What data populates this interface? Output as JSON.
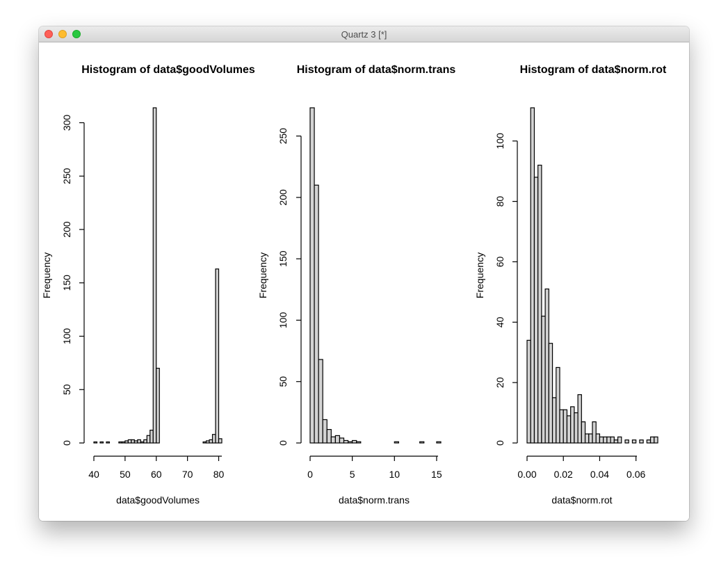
{
  "window": {
    "title": "Quartz 3 [*]"
  },
  "colors": {
    "bar_fill": "#d3d3d3",
    "bar_stroke": "#000000"
  },
  "chart_data": [
    {
      "type": "bar",
      "title": "Histogram of data$goodVolumes",
      "xlabel": "data$goodVolumes",
      "ylabel": "Frequency",
      "xlim": [
        40,
        81
      ],
      "ylim": [
        0,
        314
      ],
      "xticks": [
        40,
        50,
        60,
        70,
        80
      ],
      "yticks": [
        0,
        50,
        100,
        150,
        200,
        250,
        300
      ],
      "bin_width": 1,
      "bins_start": [
        40,
        41,
        42,
        43,
        44,
        45,
        46,
        47,
        48,
        49,
        50,
        51,
        52,
        53,
        54,
        55,
        56,
        57,
        58,
        59,
        60,
        61,
        62,
        63,
        64,
        65,
        66,
        67,
        68,
        69,
        70,
        71,
        72,
        73,
        74,
        75,
        76,
        77,
        78,
        79,
        80
      ],
      "values": [
        1,
        0,
        1,
        0,
        1,
        0,
        0,
        0,
        1,
        1,
        2,
        3,
        3,
        2,
        3,
        1,
        3,
        7,
        12,
        314,
        70,
        0,
        0,
        0,
        0,
        0,
        0,
        0,
        0,
        0,
        0,
        0,
        0,
        0,
        0,
        1,
        2,
        3,
        8,
        163,
        4
      ]
    },
    {
      "type": "bar",
      "title": "Histogram of data$norm.trans",
      "xlabel": "data$norm.trans",
      "ylabel": "Frequency",
      "xlim": [
        0,
        15.5
      ],
      "ylim": [
        0,
        273
      ],
      "xticks": [
        0,
        5,
        10,
        15
      ],
      "yticks": [
        0,
        50,
        100,
        150,
        200,
        250
      ],
      "bin_width": 0.5,
      "bins_start": [
        0,
        0.5,
        1,
        1.5,
        2,
        2.5,
        3,
        3.5,
        4,
        4.5,
        5,
        5.5,
        6,
        6.5,
        7,
        7.5,
        8,
        8.5,
        9,
        9.5,
        10,
        10.5,
        11,
        11.5,
        12,
        12.5,
        13,
        13.5,
        14,
        14.5,
        15
      ],
      "values": [
        273,
        210,
        68,
        19,
        11,
        5,
        6,
        4,
        2,
        1,
        2,
        1,
        0,
        0,
        0,
        0,
        0,
        0,
        0,
        0,
        1,
        0,
        0,
        0,
        0,
        0,
        1,
        0,
        0,
        0,
        1
      ]
    },
    {
      "type": "bar",
      "title": "Histogram of data$norm.rot",
      "xlabel": "data$norm.rot",
      "ylabel": "Frequency",
      "xlim": [
        0,
        0.072
      ],
      "ylim": [
        0,
        111
      ],
      "xticks": [
        0.0,
        0.02,
        0.04,
        0.06
      ],
      "xtick_labels": [
        "0.00",
        "0.02",
        "0.04",
        "0.06"
      ],
      "yticks": [
        0,
        20,
        40,
        60,
        80,
        100
      ],
      "bin_width": 0.002,
      "bins_start": [
        0,
        0.002,
        0.004,
        0.006,
        0.008,
        0.01,
        0.012,
        0.014,
        0.016,
        0.018,
        0.02,
        0.022,
        0.024,
        0.026,
        0.028,
        0.03,
        0.032,
        0.034,
        0.036,
        0.038,
        0.04,
        0.042,
        0.044,
        0.046,
        0.048,
        0.05,
        0.052,
        0.054,
        0.056,
        0.058,
        0.06,
        0.062,
        0.064,
        0.066,
        0.068,
        0.07
      ],
      "values": [
        34,
        111,
        88,
        92,
        42,
        51,
        33,
        15,
        25,
        11,
        11,
        9,
        12,
        10,
        16,
        7,
        3,
        3,
        7,
        3,
        2,
        2,
        2,
        2,
        1,
        2,
        0,
        1,
        0,
        1,
        0,
        1,
        0,
        1,
        2,
        2
      ]
    }
  ]
}
